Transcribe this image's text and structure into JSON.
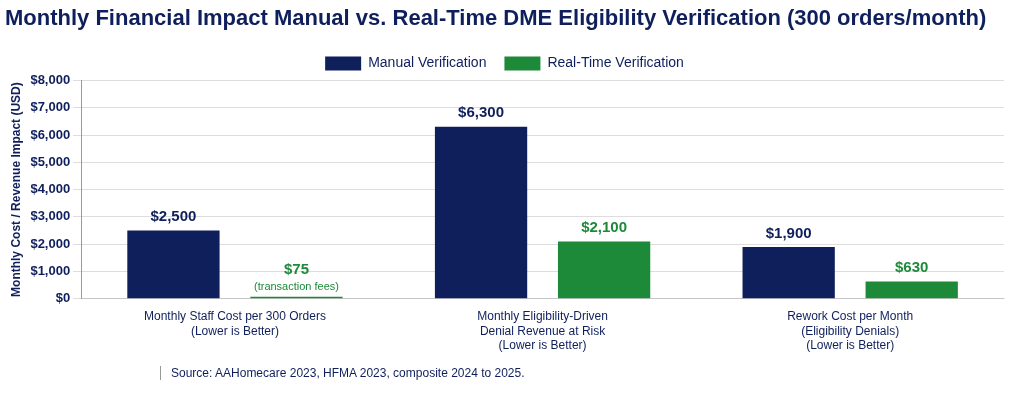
{
  "chart_data": {
    "type": "bar",
    "title": "Monthly Financial Impact Manual vs. Real-Time DME Eligibility Verification (300 orders/month)",
    "ylabel": "Monthly Cost / Revenue Impact (USD)",
    "categories": [
      "Monthly Staff Cost per 300 Orders\n(Lower is Better)",
      "Monthly Eligibility-Driven\nDenial Revenue at Risk\n(Lower is Better)",
      "Rework Cost per Month\n(Eligibility Denials)\n(Lower is Better)"
    ],
    "series": [
      {
        "name": "Manual Verification",
        "color": "#0f1f5c",
        "values": [
          2500,
          6300,
          1900
        ],
        "value_labels": [
          "$2,500",
          "$6,300",
          "$1,900"
        ]
      },
      {
        "name": "Real-Time Verification",
        "color": "#1d8a3a",
        "values": [
          75,
          2100,
          630
        ],
        "value_labels": [
          "$75\n(transaction fees)",
          "$2,100",
          "$630"
        ]
      }
    ],
    "ylim": [
      0,
      8000
    ],
    "yticks": [
      {
        "value": 0,
        "label": "$0"
      },
      {
        "value": 1000,
        "label": "$1,000"
      },
      {
        "value": 2000,
        "label": "$2,000"
      },
      {
        "value": 3000,
        "label": "$3,000"
      },
      {
        "value": 4000,
        "label": "$4,000"
      },
      {
        "value": 5000,
        "label": "$5,000"
      },
      {
        "value": 6000,
        "label": "$6,000"
      },
      {
        "value": 7000,
        "label": "$7,000"
      },
      {
        "value": 8000,
        "label": "$8,000"
      }
    ],
    "grid": "y",
    "legend": "top",
    "annotations": [
      "Source: AAHomecare 2023, HFMA 2023, composite 2024 to 2025."
    ]
  }
}
